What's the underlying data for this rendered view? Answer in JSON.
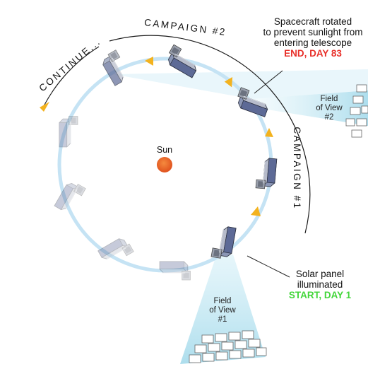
{
  "campaign2_label": "CAMPAIGN #2",
  "campaign1_label": "CAMPAIGN #1",
  "continue_label": "CONTINUE...",
  "sun_label": "Sun",
  "end_note": {
    "line1": "Spacecraft rotated",
    "line2": "to prevent sunlight from",
    "line3": "entering telescope",
    "status": "END, DAY 83"
  },
  "start_note": {
    "line1": "Solar panel",
    "line2": "illuminated",
    "status": "START, DAY 1"
  },
  "fov1": {
    "line1": "Field",
    "line2": "of View",
    "line3": "#1"
  },
  "fov2": {
    "line1": "Field",
    "line2": "of View",
    "line3": "#2"
  },
  "colors": {
    "orbit": "#c5e3f4",
    "beam": "#bfe6f2",
    "sun": "#ee6b2a",
    "arrow": "#f3b21e",
    "end_text": "#e8302a",
    "start_text": "#43d63a"
  }
}
